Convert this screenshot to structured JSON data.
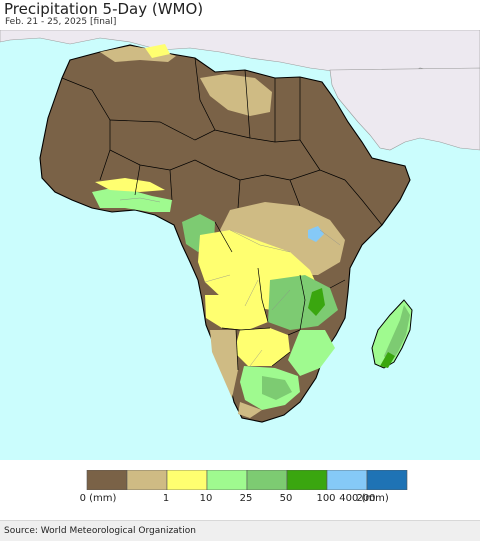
{
  "header": {
    "title": "Precipitation 5-Day (WMO)",
    "subtitle": "Feb. 21 - 25, 2025 [final]"
  },
  "legend": {
    "colors": [
      "#7a6247",
      "#cfbb84",
      "#ffff70",
      "#9ffa8f",
      "#7dcb72",
      "#3aa60f",
      "#85c9f7",
      "#1f73b5"
    ],
    "labels": [
      "0 (mm)",
      "1",
      "10",
      "25",
      "50",
      "100",
      "200",
      "400 (mm)"
    ]
  },
  "footer": {
    "source": "Source: World Meteorological Organization"
  },
  "map": {
    "ocean_color": "#cbfdfd",
    "no_data_land_color": "#ede9f0"
  }
}
